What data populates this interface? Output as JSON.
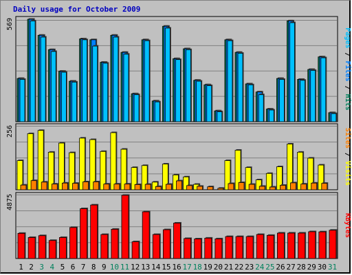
{
  "title": "Daily usage for October 2009",
  "colors": {
    "hits": "#00805c",
    "files": "#0080ff",
    "pages": "#00c0ff",
    "visits": "#ffff00",
    "sites": "#ff8000",
    "kbytes": "#ff0000",
    "background": "#c0c0c0",
    "weekend_label": "#00805c",
    "weekday_label": "#000000"
  },
  "chart_data": [
    {
      "type": "bar",
      "panel": "top",
      "ymax_label": "569",
      "ylim": [
        0,
        569
      ],
      "side_label": [
        "Pages",
        " / ",
        "Files",
        " / ",
        "Hits"
      ],
      "categories": [
        "1",
        "2",
        "3",
        "4",
        "5",
        "6",
        "7",
        "8",
        "9",
        "10",
        "11",
        "12",
        "13",
        "14",
        "15",
        "16",
        "17",
        "18",
        "19",
        "20",
        "21",
        "22",
        "23",
        "24",
        "25",
        "26",
        "27",
        "28",
        "29",
        "30",
        "31"
      ],
      "weekend_days": [
        3,
        4,
        10,
        11,
        17,
        18,
        24,
        25,
        31
      ],
      "series": [
        {
          "name": "Hits",
          "values": [
            240,
            569,
            480,
            400,
            280,
            225,
            460,
            455,
            330,
            480,
            385,
            155,
            455,
            115,
            530,
            350,
            405,
            230,
            205,
            60,
            455,
            385,
            210,
            165,
            70,
            240,
            560,
            235,
            290,
            360,
            50
          ]
        },
        {
          "name": "Files",
          "values": [
            240,
            569,
            480,
            400,
            280,
            225,
            460,
            455,
            330,
            480,
            385,
            155,
            455,
            115,
            530,
            350,
            405,
            230,
            205,
            60,
            455,
            385,
            210,
            165,
            70,
            240,
            560,
            235,
            290,
            360,
            50
          ]
        },
        {
          "name": "Pages",
          "values": [
            235,
            560,
            470,
            390,
            275,
            220,
            455,
            420,
            325,
            470,
            375,
            150,
            450,
            110,
            520,
            345,
            400,
            225,
            200,
            55,
            450,
            380,
            205,
            150,
            65,
            235,
            550,
            230,
            285,
            355,
            45
          ]
        }
      ]
    },
    {
      "type": "bar",
      "panel": "middle",
      "ymax_label": "256",
      "ylim": [
        0,
        256
      ],
      "side_label": [
        "Sites",
        " / ",
        "Visits"
      ],
      "categories": [
        "1",
        "2",
        "3",
        "4",
        "5",
        "6",
        "7",
        "8",
        "9",
        "10",
        "11",
        "12",
        "13",
        "14",
        "15",
        "16",
        "17",
        "18",
        "19",
        "20",
        "21",
        "22",
        "23",
        "24",
        "25",
        "26",
        "27",
        "28",
        "29",
        "30",
        "31"
      ],
      "series": [
        {
          "name": "Visits",
          "values": [
            118,
            227,
            240,
            152,
            189,
            150,
            209,
            203,
            155,
            231,
            164,
            90,
            98,
            31,
            104,
            60,
            52,
            22,
            0,
            0,
            118,
            160,
            90,
            40,
            66,
            93,
            185,
            152,
            128,
            100,
            0
          ]
        },
        {
          "name": "Sites",
          "values": [
            19,
            37,
            31,
            23,
            27,
            26,
            32,
            32,
            23,
            23,
            23,
            21,
            22,
            13,
            22,
            36,
            17,
            14,
            12,
            6,
            25,
            29,
            22,
            14,
            11,
            18,
            28,
            23,
            27,
            26,
            0
          ]
        }
      ]
    },
    {
      "type": "bar",
      "panel": "bottom",
      "ymax_label": "4875",
      "ylim": [
        0,
        4875
      ],
      "side_label": [
        "KBytes"
      ],
      "categories": [
        "1",
        "2",
        "3",
        "4",
        "5",
        "6",
        "7",
        "8",
        "9",
        "10",
        "11",
        "12",
        "13",
        "14",
        "15",
        "16",
        "17",
        "18",
        "19",
        "20",
        "21",
        "22",
        "23",
        "24",
        "25",
        "26",
        "27",
        "28",
        "29",
        "30",
        "31"
      ],
      "series": [
        {
          "name": "KBytes",
          "values": [
            1940,
            1620,
            1760,
            1390,
            1620,
            2390,
            3840,
            4125,
            1850,
            2255,
            4875,
            1290,
            3600,
            1850,
            2220,
            2730,
            1540,
            1510,
            1570,
            1515,
            1690,
            1690,
            1690,
            1850,
            1785,
            1960,
            1960,
            1960,
            2065,
            2055,
            2180
          ]
        }
      ]
    }
  ]
}
